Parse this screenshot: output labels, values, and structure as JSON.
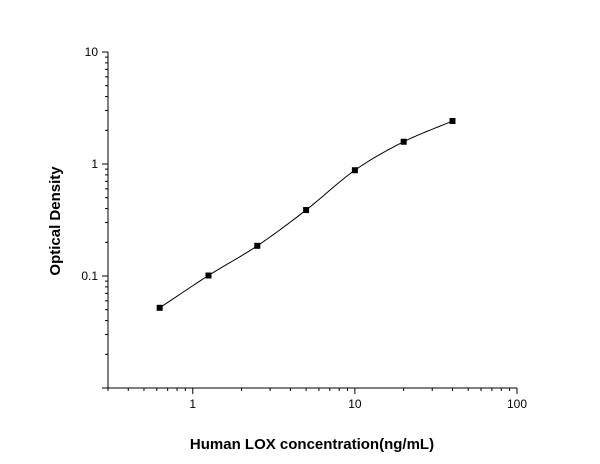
{
  "chart_data": {
    "type": "scatter",
    "title": "",
    "xlabel": "Human LOX concentration(ng/mL)",
    "ylabel": "Optical Density",
    "xscale": "log",
    "yscale": "log",
    "xlim": [
      0.3,
      100
    ],
    "ylim": [
      0.01,
      10
    ],
    "x_ticks": [
      1,
      10,
      100
    ],
    "y_ticks": [
      0.1,
      1,
      10
    ],
    "x_tick_labels": [
      "1",
      "10",
      "100"
    ],
    "y_tick_labels": [
      "0.1",
      "1",
      "10"
    ],
    "grid": false,
    "legend": "none",
    "series": [
      {
        "x": [
          0.625,
          1.25,
          2.5,
          5,
          10,
          20,
          40
        ],
        "y": [
          0.052,
          0.101,
          0.186,
          0.388,
          0.88,
          1.58,
          2.42
        ],
        "marker": "square",
        "fit_curve": true
      }
    ],
    "colors": {
      "marker": "#000000",
      "line": "#000000",
      "axis": "#000000"
    }
  }
}
